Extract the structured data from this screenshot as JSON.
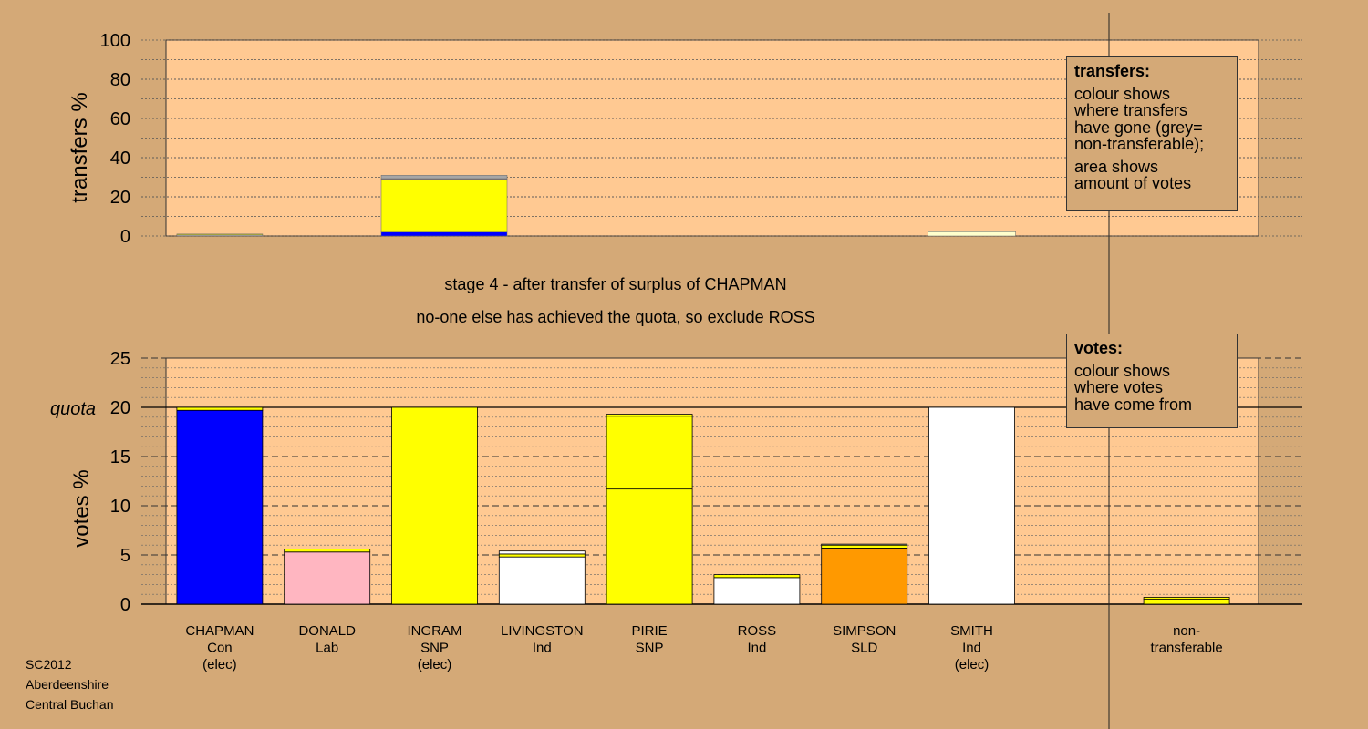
{
  "chart_data": [
    {
      "type": "bar",
      "name": "transfers",
      "ylabel": "transfers %",
      "ylim": [
        0,
        100
      ],
      "yticks": [
        0,
        20,
        40,
        60,
        80,
        100
      ],
      "grid": true,
      "categories": [
        "CHAPMAN",
        "DONALD",
        "INGRAM",
        "LIVINGSTON",
        "PIRIE",
        "ROSS",
        "SIMPSON",
        "SMITH"
      ],
      "bars": [
        {
          "category": "CHAPMAN",
          "segments": [
            {
              "value": 0.6,
              "color": "#a6a6a6"
            },
            {
              "value": 0.4,
              "color": "#ffff00"
            }
          ]
        },
        {
          "category": "INGRAM",
          "segments": [
            {
              "value": 2.0,
              "color": "#0000ff"
            },
            {
              "value": 27.0,
              "color": "#ffff00"
            },
            {
              "value": 0.3,
              "color": "#ffb6c1"
            },
            {
              "value": 1.7,
              "color": "#a6a6a6"
            }
          ]
        },
        {
          "category": "SMITH",
          "segments": [
            {
              "value": 2.2,
              "color": "#ffffcc"
            },
            {
              "value": 0.4,
              "color": "#ffff00"
            }
          ]
        }
      ]
    },
    {
      "type": "bar",
      "name": "votes",
      "ylabel": "votes %",
      "ylim": [
        0,
        25
      ],
      "yticks": [
        0,
        5,
        10,
        15,
        20,
        25
      ],
      "quota": 20,
      "quota_label": "quota",
      "grid": true,
      "categories": [
        "CHAPMAN",
        "DONALD",
        "INGRAM",
        "LIVINGSTON",
        "PIRIE",
        "ROSS",
        "SIMPSON",
        "SMITH",
        "",
        "non-transferable"
      ],
      "category_labels": [
        [
          "CHAPMAN",
          "Con",
          "(elec)"
        ],
        [
          "DONALD",
          "Lab"
        ],
        [
          "INGRAM",
          "SNP",
          "(elec)"
        ],
        [
          "LIVINGSTON",
          "Ind"
        ],
        [
          "PIRIE",
          "SNP"
        ],
        [
          "ROSS",
          "Ind"
        ],
        [
          "SIMPSON",
          "SLD"
        ],
        [
          "SMITH",
          "Ind",
          "(elec)"
        ],
        [],
        [
          "non-",
          "transferable"
        ]
      ],
      "bars": [
        {
          "category": "CHAPMAN",
          "segments": [
            {
              "value": 19.7,
              "color": "#0000ff"
            },
            {
              "value": 0.3,
              "color": "#ffff00"
            }
          ]
        },
        {
          "category": "DONALD",
          "segments": [
            {
              "value": 5.3,
              "color": "#ffb6c1"
            },
            {
              "value": 0.3,
              "color": "#ffff00"
            }
          ]
        },
        {
          "category": "INGRAM",
          "segments": [
            {
              "value": 20.0,
              "color": "#ffff00"
            }
          ]
        },
        {
          "category": "LIVINGSTON",
          "segments": [
            {
              "value": 4.8,
              "color": "#ffffff"
            },
            {
              "value": 0.3,
              "color": "#ffff00"
            },
            {
              "value": 0.3,
              "color": "#ffffff"
            }
          ]
        },
        {
          "category": "PIRIE",
          "segments": [
            {
              "value": 11.7,
              "color": "#ffff00"
            },
            {
              "value": 7.4,
              "color": "#ffff00"
            },
            {
              "value": 0.2,
              "color": "#ffff00"
            }
          ]
        },
        {
          "category": "ROSS",
          "segments": [
            {
              "value": 2.7,
              "color": "#ffffff"
            },
            {
              "value": 0.3,
              "color": "#ffff00"
            }
          ]
        },
        {
          "category": "SIMPSON",
          "segments": [
            {
              "value": 5.7,
              "color": "#ff9900"
            },
            {
              "value": 0.3,
              "color": "#ffff00"
            },
            {
              "value": 0.1,
              "color": "#ffffff"
            }
          ]
        },
        {
          "category": "SMITH",
          "segments": [
            {
              "value": 20.0,
              "color": "#ffffff"
            }
          ]
        },
        {
          "category": "",
          "segments": []
        },
        {
          "category": "non-transferable",
          "segments": [
            {
              "value": 0.5,
              "color": "#ffff00"
            },
            {
              "value": 0.2,
              "color": "#ffff00"
            }
          ]
        }
      ]
    }
  ],
  "stage": {
    "line1": "stage 4 - after transfer of surplus of CHAPMAN",
    "line2": "no-one else has achieved the quota, so exclude ROSS"
  },
  "legend_transfers": {
    "title": "transfers:",
    "text1": "colour shows\nwhere transfers\nhave gone (grey=\nnon-transferable);",
    "text2": "area shows\namount of votes"
  },
  "legend_votes": {
    "title": "votes:",
    "text1": "colour shows\nwhere votes\nhave come from"
  },
  "footer": {
    "line1": "SC2012",
    "line2": "Aberdeenshire",
    "line3": "Central Buchan"
  },
  "colors": {
    "background": "#d4a977",
    "plot_background": "#ffc992"
  }
}
